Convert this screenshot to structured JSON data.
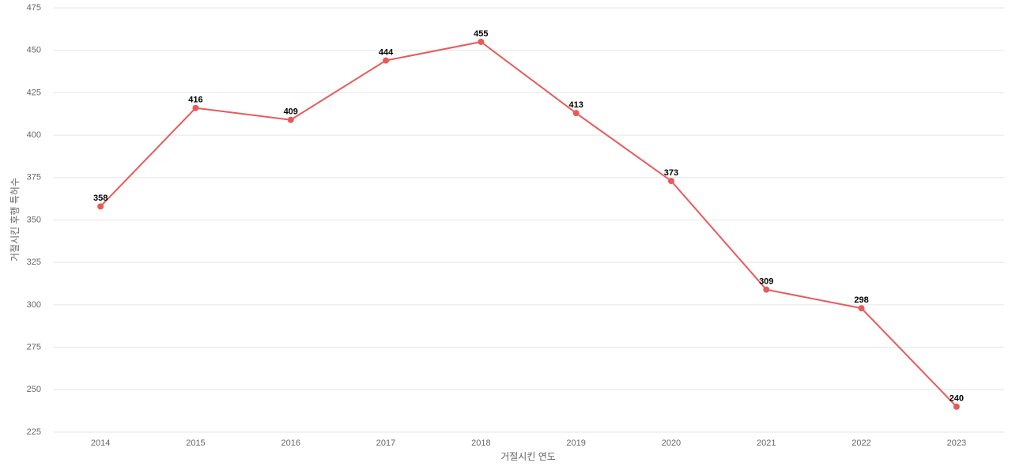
{
  "chart_data": {
    "type": "line",
    "xlabel": "거절시킨 연도",
    "ylabel": "거절시킨 후행 특허수",
    "categories": [
      "2014",
      "2015",
      "2016",
      "2017",
      "2018",
      "2019",
      "2020",
      "2021",
      "2022",
      "2023"
    ],
    "values": [
      358,
      416,
      409,
      444,
      455,
      413,
      373,
      309,
      298,
      240
    ],
    "color": "#e85a5a",
    "ylim": [
      225,
      475
    ],
    "yticks": [
      225,
      250,
      275,
      300,
      325,
      350,
      375,
      400,
      425,
      450,
      475
    ],
    "grid": true
  }
}
